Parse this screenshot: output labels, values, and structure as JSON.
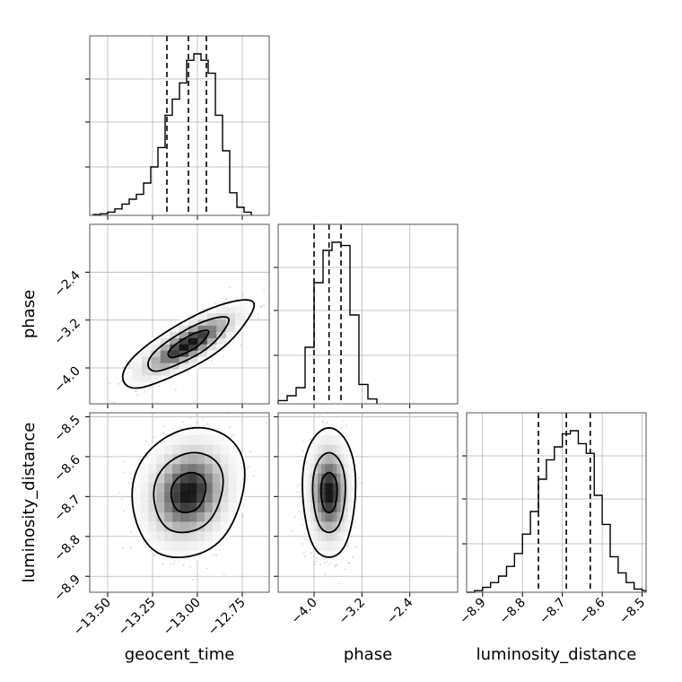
{
  "chart_data": {
    "type": "corner",
    "parameters": [
      {
        "name": "geocent_time",
        "label": "geocent_time",
        "range": [
          -13.6,
          -12.6
        ],
        "ticks": [
          -13.5,
          -13.25,
          -13.0,
          -12.75
        ],
        "tick_labels": [
          "−13.50",
          "−13.25",
          "−13.00",
          "−12.75"
        ],
        "quantiles": [
          -13.17,
          -13.05,
          -12.95
        ],
        "histogram": {
          "bin_edges": [
            -13.58,
            -13.54,
            -13.5,
            -13.46,
            -13.42,
            -13.38,
            -13.34,
            -13.3,
            -13.26,
            -13.22,
            -13.18,
            -13.14,
            -13.1,
            -13.06,
            -13.02,
            -12.98,
            -12.94,
            -12.9,
            -12.86,
            -12.82,
            -12.78,
            -12.74,
            -12.7
          ],
          "counts": [
            0.005,
            0.01,
            0.02,
            0.04,
            0.07,
            0.1,
            0.13,
            0.2,
            0.3,
            0.42,
            0.62,
            0.72,
            0.82,
            0.96,
            1.0,
            0.96,
            0.88,
            0.62,
            0.4,
            0.14,
            0.05,
            0.02
          ]
        }
      },
      {
        "name": "phase",
        "label": "phase",
        "range": [
          -4.6,
          -1.6
        ],
        "ticks": [
          -4.0,
          -3.2,
          -2.4
        ],
        "tick_labels": [
          "−4.0",
          "−3.2",
          "−2.4"
        ],
        "quantiles": [
          -4.0,
          -3.75,
          -3.55
        ],
        "histogram": {
          "bin_edges": [
            -4.6,
            -4.45,
            -4.3,
            -4.15,
            -4.0,
            -3.85,
            -3.7,
            -3.55,
            -3.4,
            -3.25,
            -3.1,
            -2.95
          ],
          "counts": [
            0.02,
            0.05,
            0.1,
            0.35,
            0.75,
            0.95,
            1.0,
            0.98,
            0.55,
            0.12,
            0.03
          ]
        }
      },
      {
        "name": "luminosity_distance",
        "label": "luminosity_distance",
        "range": [
          -8.94,
          -8.49
        ],
        "ticks": [
          -8.9,
          -8.8,
          -8.7,
          -8.6,
          -8.5
        ],
        "tick_labels": [
          "−8.9",
          "−8.8",
          "−8.7",
          "−8.6",
          "−8.5"
        ],
        "quantiles": [
          -8.76,
          -8.69,
          -8.63
        ],
        "histogram": {
          "bin_edges": [
            -8.94,
            -8.92,
            -8.9,
            -8.88,
            -8.86,
            -8.84,
            -8.82,
            -8.8,
            -8.78,
            -8.76,
            -8.74,
            -8.72,
            -8.7,
            -8.68,
            -8.66,
            -8.64,
            -8.62,
            -8.6,
            -8.58,
            -8.56,
            -8.54,
            -8.52,
            -8.5,
            -8.49
          ],
          "counts": [
            0.0,
            0.01,
            0.03,
            0.06,
            0.1,
            0.16,
            0.24,
            0.36,
            0.5,
            0.7,
            0.82,
            0.9,
            0.98,
            1.0,
            0.92,
            0.86,
            0.6,
            0.42,
            0.22,
            0.12,
            0.06,
            0.02,
            0.01
          ]
        }
      }
    ],
    "pairs": [
      {
        "x": "geocent_time",
        "y": "phase",
        "center": [
          -13.05,
          -3.6
        ],
        "sigma": [
          0.14,
          0.28
        ],
        "correlation": 0.8,
        "contour_levels_sigma": [
          0.8,
          1.6,
          2.6
        ]
      },
      {
        "x": "geocent_time",
        "y": "luminosity_distance",
        "center": [
          -13.05,
          -8.69
        ],
        "sigma": [
          0.12,
          0.065
        ],
        "correlation": 0.15,
        "contour_levels_sigma": [
          0.8,
          1.6,
          2.6
        ]
      },
      {
        "x": "phase",
        "y": "luminosity_distance",
        "center": [
          -3.75,
          -8.69
        ],
        "sigma": [
          0.17,
          0.065
        ],
        "correlation": 0.0,
        "contour_levels_sigma": [
          0.8,
          1.6,
          2.6
        ]
      }
    ],
    "grid": true,
    "density_colormap": "greys"
  }
}
